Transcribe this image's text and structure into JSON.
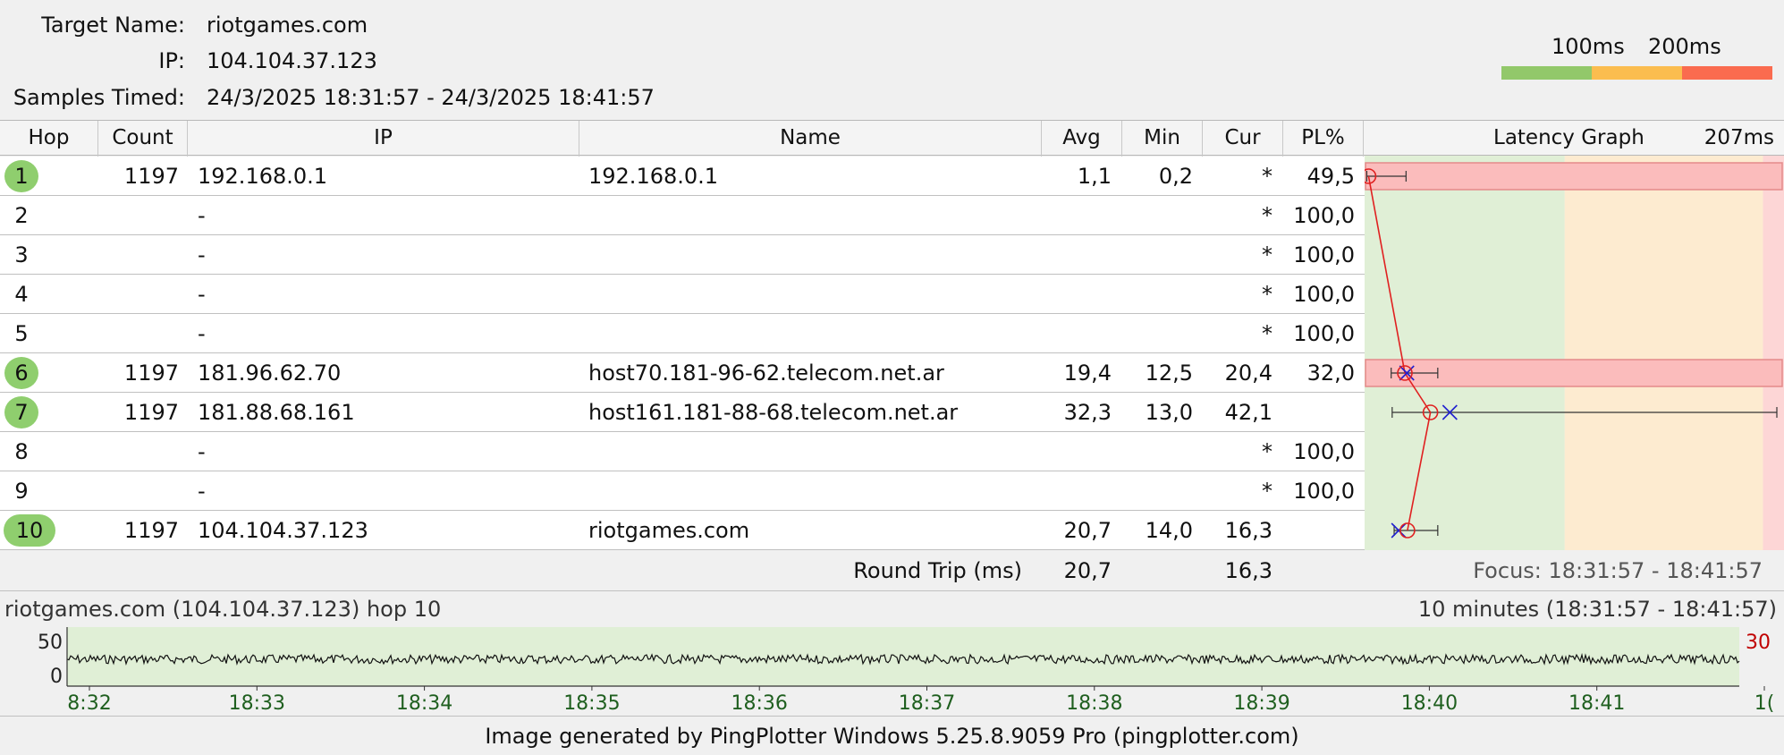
{
  "header": {
    "target_label": "Target Name:",
    "target_value": "riotgames.com",
    "ip_label": "IP:",
    "ip_value": "104.104.37.123",
    "samples_label": "Samples Timed:",
    "samples_value": "24/3/2025 18:31:57 - 24/3/2025 18:41:57",
    "scale_100": "100ms",
    "scale_200": "200ms",
    "scale_colors": [
      "#92c86a",
      "#fbbd4f",
      "#fa6b4f"
    ]
  },
  "columns": {
    "hop": "Hop",
    "count": "Count",
    "ip": "IP",
    "name": "Name",
    "avg": "Avg",
    "min": "Min",
    "cur": "Cur",
    "pl": "PL%",
    "graph": "Latency Graph",
    "graph_max": "207ms"
  },
  "hops": [
    {
      "hop": "1",
      "count": "1197",
      "ip": "192.168.0.1",
      "name": "192.168.0.1",
      "avg": "1,1",
      "min": "0,2",
      "cur": "*",
      "pl": "49,5",
      "ok": true
    },
    {
      "hop": "2",
      "count": "",
      "ip": "-",
      "name": "",
      "avg": "",
      "min": "",
      "cur": "*",
      "pl": "100,0",
      "ok": false
    },
    {
      "hop": "3",
      "count": "",
      "ip": "-",
      "name": "",
      "avg": "",
      "min": "",
      "cur": "*",
      "pl": "100,0",
      "ok": false
    },
    {
      "hop": "4",
      "count": "",
      "ip": "-",
      "name": "",
      "avg": "",
      "min": "",
      "cur": "*",
      "pl": "100,0",
      "ok": false
    },
    {
      "hop": "5",
      "count": "",
      "ip": "-",
      "name": "",
      "avg": "",
      "min": "",
      "cur": "*",
      "pl": "100,0",
      "ok": false
    },
    {
      "hop": "6",
      "count": "1197",
      "ip": "181.96.62.70",
      "name": "host70.181-96-62.telecom.net.ar",
      "avg": "19,4",
      "min": "12,5",
      "cur": "20,4",
      "pl": "32,0",
      "ok": true
    },
    {
      "hop": "7",
      "count": "1197",
      "ip": "181.88.68.161",
      "name": "host161.181-88-68.telecom.net.ar",
      "avg": "32,3",
      "min": "13,0",
      "cur": "42,1",
      "pl": "",
      "ok": true
    },
    {
      "hop": "8",
      "count": "",
      "ip": "-",
      "name": "",
      "avg": "",
      "min": "",
      "cur": "*",
      "pl": "100,0",
      "ok": false
    },
    {
      "hop": "9",
      "count": "",
      "ip": "-",
      "name": "",
      "avg": "",
      "min": "",
      "cur": "*",
      "pl": "100,0",
      "ok": false
    },
    {
      "hop": "10",
      "count": "1197",
      "ip": "104.104.37.123",
      "name": "riotgames.com",
      "avg": "20,7",
      "min": "14,0",
      "cur": "16,3",
      "pl": "",
      "ok": true
    }
  ],
  "roundtrip": {
    "label": "Round Trip (ms)",
    "avg": "20,7",
    "cur": "16,3",
    "focus": "Focus: 18:31:57 - 18:41:57"
  },
  "timeline": {
    "title": "riotgames.com (104.104.37.123) hop 10",
    "range": "10 minutes (18:31:57 - 18:41:57)",
    "y_top": "50",
    "y_bottom": "0",
    "right_marker": "30",
    "ticks": [
      "8:32",
      "18:33",
      "18:34",
      "18:35",
      "18:36",
      "18:37",
      "18:38",
      "18:39",
      "18:40",
      "18:41",
      "1("
    ]
  },
  "footer": "Image generated by PingPlotter Windows 5.25.8.9059 Pro (pingplotter.com)",
  "chart_data": {
    "type": "scatter",
    "title": "Latency Graph",
    "xlim": [
      0,
      207
    ],
    "x_unit": "ms",
    "series": [
      {
        "name": "Avg",
        "values": [
          {
            "hop": 1,
            "ms": 1.1
          },
          {
            "hop": 6,
            "ms": 19.4
          },
          {
            "hop": 7,
            "ms": 32.3
          },
          {
            "hop": 10,
            "ms": 20.7
          }
        ]
      },
      {
        "name": "Cur",
        "values": [
          {
            "hop": 6,
            "ms": 20.4
          },
          {
            "hop": 7,
            "ms": 42.1
          },
          {
            "hop": 10,
            "ms": 16.3
          }
        ]
      },
      {
        "name": "Min",
        "values": [
          {
            "hop": 1,
            "ms": 0.2
          },
          {
            "hop": 6,
            "ms": 12.5
          },
          {
            "hop": 7,
            "ms": 13.0
          },
          {
            "hop": 10,
            "ms": 14.0
          }
        ]
      }
    ],
    "max_whisker": [
      {
        "hop": 1,
        "ms": 20
      },
      {
        "hop": 6,
        "ms": 36
      },
      {
        "hop": 7,
        "ms": 207
      },
      {
        "hop": 10,
        "ms": 36
      }
    ],
    "packet_loss_pct": [
      {
        "hop": 1,
        "pl": 49.5
      },
      {
        "hop": 6,
        "pl": 32.0
      }
    ],
    "zones_ms": [
      100,
      200
    ]
  }
}
